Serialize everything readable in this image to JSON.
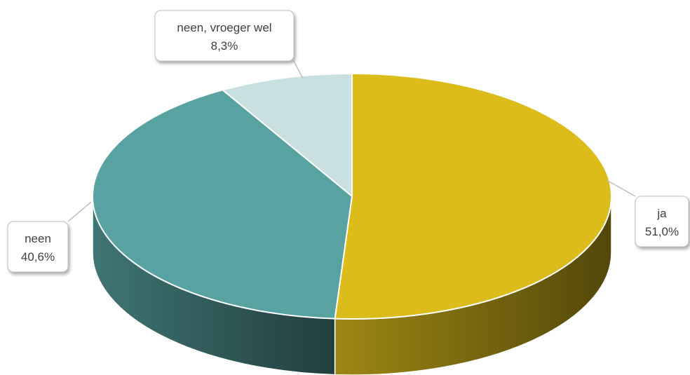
{
  "chart_data": {
    "type": "pie",
    "variant": "3d",
    "title": "",
    "slices": [
      {
        "label": "ja",
        "value": 51.0,
        "value_label": "51,0%",
        "color": "#DBBC1B"
      },
      {
        "label": "neen",
        "value": 40.6,
        "value_label": "40,6%",
        "color": "#58A3A1"
      },
      {
        "label": "neen, vroeger wel",
        "value": 8.3,
        "value_label": "8,3%",
        "color": "#C8E1E0"
      }
    ],
    "legend": "none",
    "data_labels": "callouts"
  }
}
